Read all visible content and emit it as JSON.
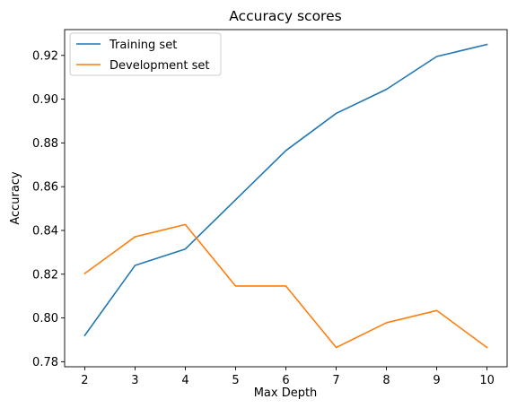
{
  "chart_data": {
    "type": "line",
    "title": "Accuracy scores",
    "xlabel": "Max Depth",
    "ylabel": "Accuracy",
    "x": [
      2,
      3,
      4,
      5,
      6,
      7,
      8,
      9,
      10
    ],
    "xticks": [
      "2",
      "3",
      "4",
      "5",
      "6",
      "7",
      "8",
      "9",
      "10"
    ],
    "yticks": [
      "0.78",
      "0.80",
      "0.82",
      "0.84",
      "0.86",
      "0.88",
      "0.90",
      "0.92"
    ],
    "xlim": [
      1.6,
      10.4
    ],
    "ylim": [
      0.7777,
      0.9318
    ],
    "grid": false,
    "legend": "upper-left",
    "series": [
      {
        "name": "Training set",
        "color": "#1f77b4",
        "values": [
          0.792,
          0.824,
          0.8315,
          0.854,
          0.8765,
          0.8935,
          0.9045,
          0.9195,
          0.925
        ]
      },
      {
        "name": "Development set",
        "color": "#ff7f0e",
        "values": [
          0.8203,
          0.8371,
          0.8427,
          0.8146,
          0.8146,
          0.7865,
          0.7978,
          0.8034,
          0.7865
        ]
      }
    ]
  }
}
